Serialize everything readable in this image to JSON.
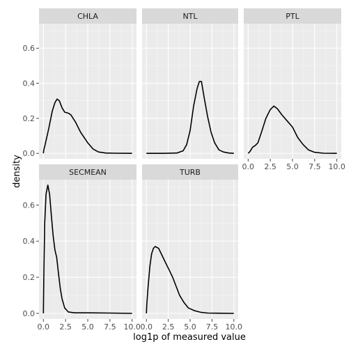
{
  "chart_data": {
    "type": "line",
    "xlabel": "log1p of measured value",
    "ylabel": "density",
    "xlim": [
      0,
      10
    ],
    "ylim": [
      0,
      0.74
    ],
    "x_ticks": [
      0,
      2.5,
      5,
      7.5,
      10
    ],
    "x_tick_labels": [
      "0.0",
      "2.5",
      "5.0",
      "7.5",
      "10.0"
    ],
    "y_ticks": [
      0,
      0.2,
      0.4,
      0.6
    ],
    "y_tick_labels": [
      "0.0",
      "0.2",
      "0.4",
      "0.6"
    ],
    "grid": true,
    "facets": [
      {
        "name": "CHLA",
        "points": [
          [
            0,
            0
          ],
          [
            0.05,
            0.02
          ],
          [
            0.2,
            0.05
          ],
          [
            0.6,
            0.14
          ],
          [
            1.0,
            0.24
          ],
          [
            1.3,
            0.29
          ],
          [
            1.55,
            0.31
          ],
          [
            1.8,
            0.3
          ],
          [
            2.1,
            0.26
          ],
          [
            2.4,
            0.235
          ],
          [
            2.8,
            0.23
          ],
          [
            3.1,
            0.22
          ],
          [
            3.6,
            0.18
          ],
          [
            4.2,
            0.12
          ],
          [
            5.0,
            0.06
          ],
          [
            5.6,
            0.025
          ],
          [
            6.2,
            0.008
          ],
          [
            7.0,
            0.002
          ],
          [
            8.0,
            0.001
          ],
          [
            10.0,
            0
          ]
        ]
      },
      {
        "name": "NTL",
        "points": [
          [
            0,
            0
          ],
          [
            2.0,
            0
          ],
          [
            3.5,
            0.002
          ],
          [
            4.2,
            0.015
          ],
          [
            4.6,
            0.05
          ],
          [
            5.0,
            0.13
          ],
          [
            5.4,
            0.27
          ],
          [
            5.8,
            0.37
          ],
          [
            6.05,
            0.41
          ],
          [
            6.3,
            0.41
          ],
          [
            6.6,
            0.32
          ],
          [
            7.0,
            0.21
          ],
          [
            7.4,
            0.12
          ],
          [
            7.8,
            0.06
          ],
          [
            8.3,
            0.02
          ],
          [
            8.8,
            0.008
          ],
          [
            9.4,
            0.002
          ],
          [
            10.0,
            0
          ]
        ]
      },
      {
        "name": "PTL",
        "points": [
          [
            0,
            0
          ],
          [
            0.2,
            0.01
          ],
          [
            0.5,
            0.035
          ],
          [
            0.8,
            0.045
          ],
          [
            1.1,
            0.06
          ],
          [
            1.5,
            0.12
          ],
          [
            2.0,
            0.2
          ],
          [
            2.5,
            0.25
          ],
          [
            2.9,
            0.27
          ],
          [
            3.3,
            0.255
          ],
          [
            3.8,
            0.22
          ],
          [
            4.4,
            0.185
          ],
          [
            5.0,
            0.15
          ],
          [
            5.6,
            0.09
          ],
          [
            6.2,
            0.05
          ],
          [
            6.8,
            0.02
          ],
          [
            7.5,
            0.006
          ],
          [
            8.5,
            0.001
          ],
          [
            10.0,
            0
          ]
        ]
      },
      {
        "name": "SECMEAN",
        "points": [
          [
            0,
            0
          ],
          [
            0.05,
            0.2
          ],
          [
            0.15,
            0.5
          ],
          [
            0.3,
            0.66
          ],
          [
            0.5,
            0.71
          ],
          [
            0.7,
            0.66
          ],
          [
            0.9,
            0.54
          ],
          [
            1.1,
            0.43
          ],
          [
            1.3,
            0.35
          ],
          [
            1.5,
            0.31
          ],
          [
            1.7,
            0.22
          ],
          [
            1.9,
            0.14
          ],
          [
            2.1,
            0.08
          ],
          [
            2.4,
            0.03
          ],
          [
            2.8,
            0.008
          ],
          [
            3.5,
            0.003
          ],
          [
            5.0,
            0.003
          ],
          [
            7.5,
            0.002
          ],
          [
            10.0,
            0
          ]
        ]
      },
      {
        "name": "TURB",
        "points": [
          [
            0,
            0
          ],
          [
            0.05,
            0.05
          ],
          [
            0.2,
            0.15
          ],
          [
            0.4,
            0.26
          ],
          [
            0.6,
            0.33
          ],
          [
            0.8,
            0.36
          ],
          [
            1.0,
            0.37
          ],
          [
            1.4,
            0.36
          ],
          [
            1.8,
            0.32
          ],
          [
            2.2,
            0.28
          ],
          [
            2.6,
            0.24
          ],
          [
            3.0,
            0.2
          ],
          [
            3.4,
            0.15
          ],
          [
            3.8,
            0.1
          ],
          [
            4.3,
            0.06
          ],
          [
            4.8,
            0.03
          ],
          [
            5.5,
            0.015
          ],
          [
            6.2,
            0.006
          ],
          [
            7.0,
            0.002
          ],
          [
            8.0,
            0.001
          ],
          [
            10.0,
            0
          ]
        ]
      }
    ]
  }
}
